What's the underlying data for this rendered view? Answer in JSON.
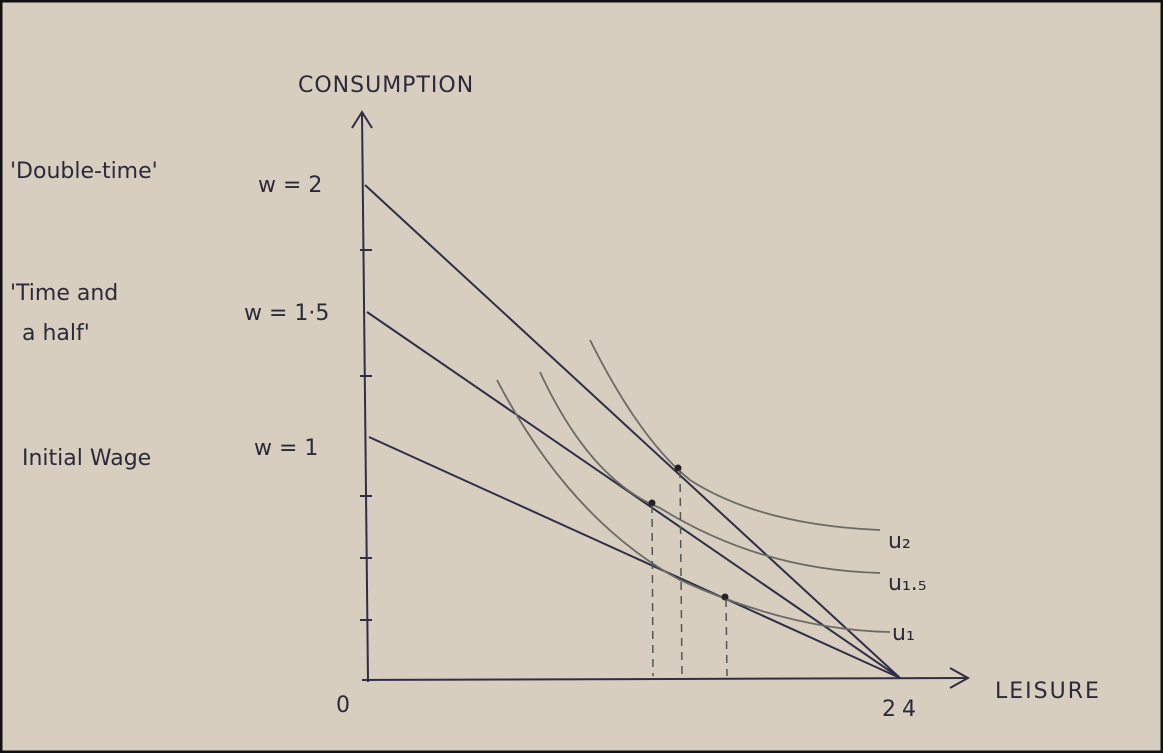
{
  "axes": {
    "y_label": "CONSUMPTION",
    "x_label": "LEISURE",
    "origin": "0",
    "x_end": "24"
  },
  "budget_lines": [
    {
      "name": [
        "'Double-time'"
      ],
      "wage": "w = 2"
    },
    {
      "name": [
        "'Time and",
        "a half'"
      ],
      "wage": "w = 1·5"
    },
    {
      "name": [
        "Initial Wage"
      ],
      "wage": "w = 1"
    }
  ],
  "indifference_curves": [
    {
      "label": "u₂"
    },
    {
      "label": "u₁.₅"
    },
    {
      "label": "u₁"
    }
  ]
}
